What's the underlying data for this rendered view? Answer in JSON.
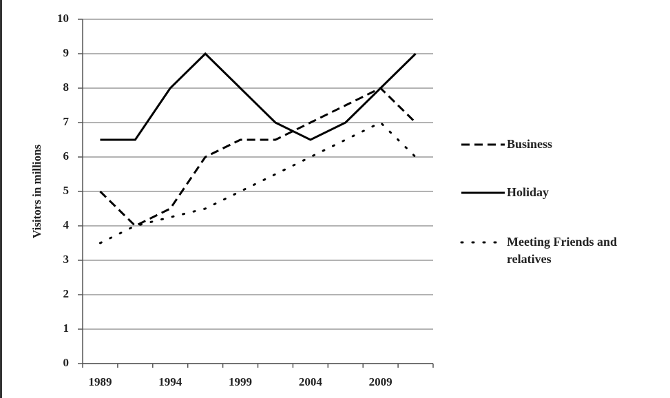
{
  "chart_data": {
    "type": "line",
    "y_label": "Visitors in millions",
    "categories": [
      "1989",
      null,
      "1994",
      null,
      "1999",
      null,
      "2004",
      null,
      "2009",
      null
    ],
    "series": [
      {
        "name": "Business",
        "color": "#000000",
        "dash": "dashed",
        "values": [
          5,
          4,
          4.5,
          6,
          6.5,
          6.5,
          7,
          7.5,
          8,
          7
        ]
      },
      {
        "name": "Holiday",
        "color": "#000000",
        "dash": "solid",
        "values": [
          6.5,
          6.5,
          8,
          9,
          8,
          7,
          6.5,
          7,
          8,
          9
        ]
      },
      {
        "name": "Meeting Friends and relatives",
        "color": "#000000",
        "dash": "dotted",
        "values": [
          3.5,
          4,
          4.25,
          4.5,
          5,
          5.5,
          6,
          6.5,
          7,
          6
        ]
      }
    ],
    "ylim": [
      0,
      10
    ],
    "yticks": [
      0,
      1,
      2,
      3,
      4,
      5,
      6,
      7,
      8,
      9,
      10
    ],
    "grid": true,
    "legend": "right"
  }
}
